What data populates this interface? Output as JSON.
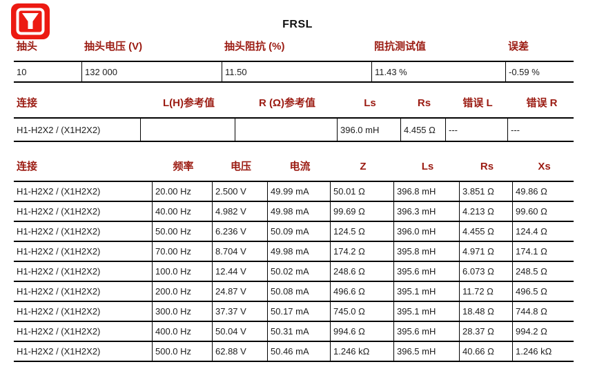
{
  "title": "FRSL",
  "logo": {
    "icon": "funnel-icon",
    "bg_color": "#EC1A12",
    "glyph_color": "#ffffff"
  },
  "colors": {
    "header_text": "#9B1B12",
    "body_text": "#1c1c1c",
    "border": "#000000",
    "background": "#ffffff"
  },
  "tap_table": {
    "headers": [
      "抽头",
      "抽头电压 (V)",
      "抽头阻抗 (%)",
      "阻抗测试值",
      "误差"
    ],
    "rows": [
      [
        "10",
        "132 000",
        "11.50",
        "11.43 %",
        "-0.59 %"
      ]
    ]
  },
  "reference_table": {
    "headers": [
      "连接",
      "L(H)参考值",
      "R (Ω)参考值",
      "Ls",
      "Rs",
      "错误 L",
      "错误 R"
    ],
    "rows": [
      [
        "H1-H2X2 / (X1H2X2)",
        "",
        "",
        "396.0 mH",
        "4.455 Ω",
        "---",
        "---"
      ]
    ]
  },
  "measurement_table": {
    "headers": [
      "连接",
      "频率",
      "电压",
      "电流",
      "Z",
      "Ls",
      "Rs",
      "Xs"
    ],
    "rows": [
      [
        "H1-H2X2 / (X1H2X2)",
        "20.00 Hz",
        "2.500 V",
        "49.99 mA",
        "50.01 Ω",
        "396.8 mH",
        "3.851 Ω",
        "49.86 Ω"
      ],
      [
        "H1-H2X2 / (X1H2X2)",
        "40.00 Hz",
        "4.982 V",
        "49.98 mA",
        "99.69 Ω",
        "396.3 mH",
        "4.213 Ω",
        "99.60 Ω"
      ],
      [
        "H1-H2X2 / (X1H2X2)",
        "50.00 Hz",
        "6.236 V",
        "50.09 mA",
        "124.5 Ω",
        "396.0 mH",
        "4.455 Ω",
        "124.4 Ω"
      ],
      [
        "H1-H2X2 / (X1H2X2)",
        "70.00 Hz",
        "8.704 V",
        "49.98 mA",
        "174.2 Ω",
        "395.8 mH",
        "4.971 Ω",
        "174.1 Ω"
      ],
      [
        "H1-H2X2 / (X1H2X2)",
        "100.0 Hz",
        "12.44 V",
        "50.02 mA",
        "248.6 Ω",
        "395.6 mH",
        "6.073 Ω",
        "248.5 Ω"
      ],
      [
        "H1-H2X2 / (X1H2X2)",
        "200.0 Hz",
        "24.87 V",
        "50.08 mA",
        "496.6 Ω",
        "395.1 mH",
        "11.72 Ω",
        "496.5 Ω"
      ],
      [
        "H1-H2X2 / (X1H2X2)",
        "300.0 Hz",
        "37.37 V",
        "50.17 mA",
        "745.0 Ω",
        "395.1 mH",
        "18.48 Ω",
        "744.8 Ω"
      ],
      [
        "H1-H2X2 / (X1H2X2)",
        "400.0 Hz",
        "50.04 V",
        "50.31 mA",
        "994.6 Ω",
        "395.6 mH",
        "28.37 Ω",
        "994.2 Ω"
      ],
      [
        "H1-H2X2 / (X1H2X2)",
        "500.0 Hz",
        "62.88 V",
        "50.46 mA",
        "1.246 kΩ",
        "396.5 mH",
        "40.66 Ω",
        "1.246 kΩ"
      ]
    ]
  }
}
